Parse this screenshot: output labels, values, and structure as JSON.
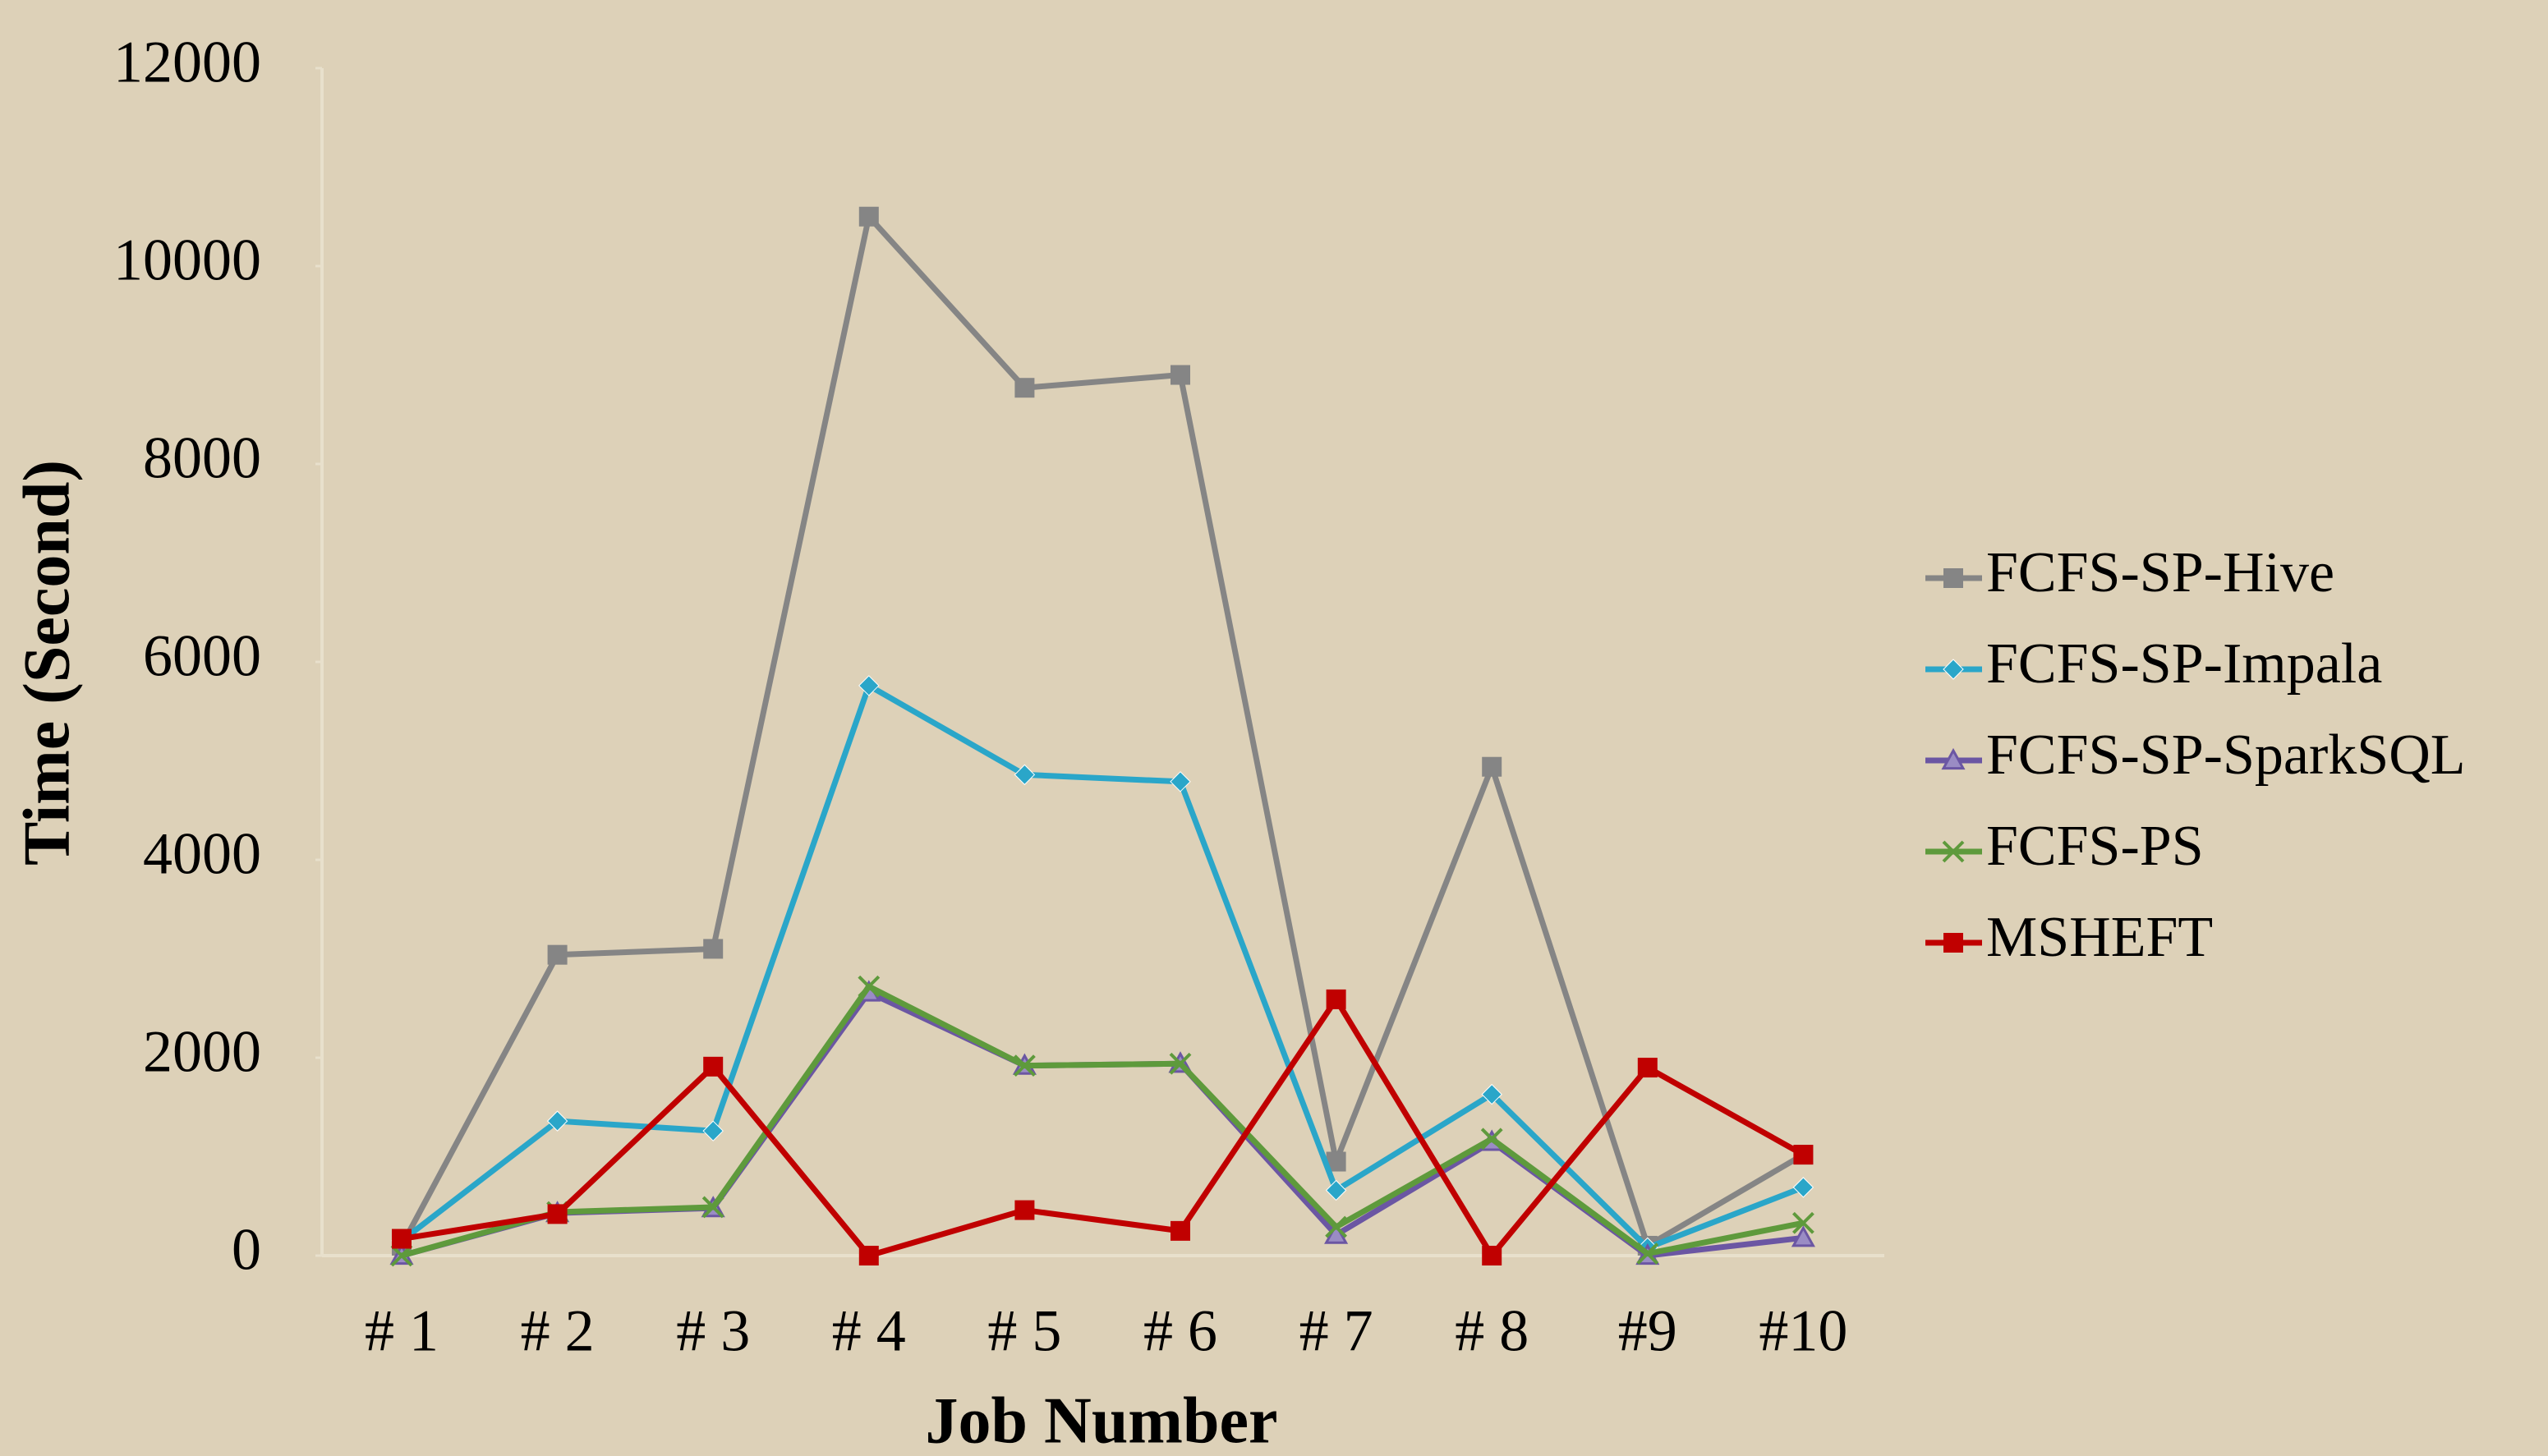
{
  "chart_data": {
    "type": "line",
    "x_label": "Job Number",
    "y_label": "Time (Second)",
    "categories": [
      "# 1",
      "# 2",
      "# 3",
      "# 4",
      "# 5",
      "# 6",
      "# 7",
      "# 8",
      "#9",
      "#10"
    ],
    "series": [
      {
        "name": "FCFS-SP-Hive",
        "color": "#858585",
        "marker": "square",
        "values": [
          100,
          3040,
          3100,
          10500,
          8770,
          8900,
          950,
          4940,
          100,
          1020
        ]
      },
      {
        "name": "FCFS-SP-Impala",
        "color": "#2aa6c9",
        "marker": "diamond",
        "values": [
          150,
          1360,
          1260,
          5760,
          4860,
          4790,
          660,
          1630,
          80,
          690
        ]
      },
      {
        "name": "FCFS-SP-SparkSQL",
        "color": "#6b56a3",
        "marker": "triangle",
        "values": [
          0,
          430,
          480,
          2660,
          1920,
          1940,
          210,
          1150,
          0,
          180
        ]
      },
      {
        "name": "FCFS-PS",
        "color": "#5e9a3c",
        "marker": "x",
        "values": [
          0,
          440,
          490,
          2720,
          1920,
          1940,
          290,
          1180,
          20,
          330
        ]
      },
      {
        "name": "MSHEFT",
        "color": "#c00000",
        "marker": "square",
        "values": [
          170,
          420,
          1910,
          0,
          460,
          250,
          2590,
          0,
          1900,
          1020
        ]
      }
    ],
    "ylim": [
      0,
      12000
    ],
    "yticks": [
      0,
      2000,
      4000,
      6000,
      8000,
      10000,
      12000
    ],
    "grid": false,
    "legend": "right"
  }
}
